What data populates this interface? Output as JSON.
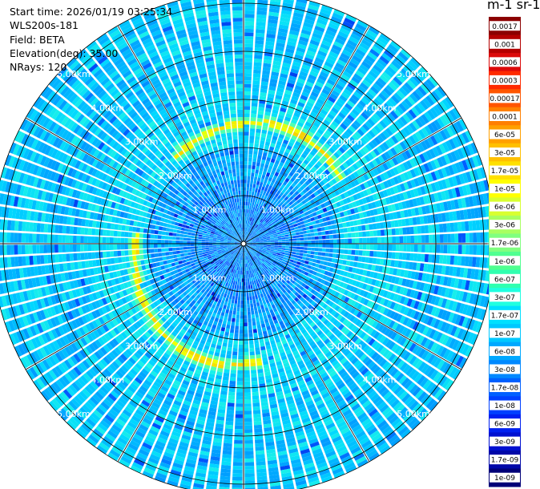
{
  "header": {
    "start_time": "Start time: 2026/01/19 03:25:34",
    "instrument": "WLS200s-181",
    "field": "Field: BETA",
    "elevation": "Elevation(deg): 35.00",
    "nrays": "NRays: 120"
  },
  "colorbar": {
    "title": "m-1 sr-1",
    "labels": [
      "0.0017",
      "0.001",
      "0.0006",
      "0.0003",
      "0.00017",
      "0.0001",
      "6e-05",
      "3e-05",
      "1.7e-05",
      "1e-05",
      "6e-06",
      "3e-06",
      "1.7e-06",
      "1e-06",
      "6e-07",
      "3e-07",
      "1.7e-07",
      "1e-07",
      "6e-08",
      "3e-08",
      "1.7e-08",
      "1e-08",
      "6e-09",
      "3e-09",
      "1.7e-09",
      "1e-09"
    ],
    "colors": [
      "#8b0000",
      "#b40000",
      "#dc0a0a",
      "#ff2a00",
      "#ff5500",
      "#ff7f00",
      "#ffa000",
      "#ffc000",
      "#ffe000",
      "#ffff00",
      "#d8ff30",
      "#a8ff60",
      "#80ff80",
      "#50ff90",
      "#30ffb0",
      "#20ffe0",
      "#00e0ff",
      "#00c8ff",
      "#00a8ff",
      "#0088ff",
      "#0060ff",
      "#0040ff",
      "#0020f0",
      "#0010d0",
      "#0008a8",
      "#000078"
    ]
  },
  "chart_data": {
    "type": "heatmap",
    "projection": "polar-ppi",
    "field": "BETA",
    "units": "m-1 sr-1",
    "elevation_deg": 35.0,
    "n_rays": 120,
    "max_range_km": 5.2,
    "range_rings_km": [
      1,
      2,
      3,
      4,
      5
    ],
    "range_ring_labels": [
      "1.00km",
      "2.00km",
      "3.00km",
      "4.00km",
      "5.00km"
    ],
    "azimuth_gridlines_deg": [
      0,
      30,
      60,
      90,
      120,
      150,
      180,
      210,
      240,
      270,
      300,
      330
    ],
    "color_scale_min": 1e-09,
    "color_scale_max": 0.0017,
    "color_scale_type": "log"
  }
}
